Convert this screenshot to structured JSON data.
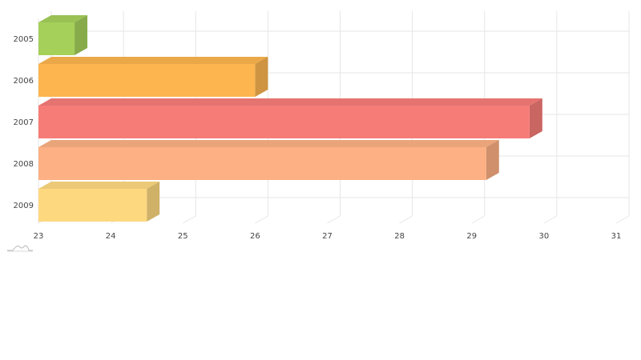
{
  "chart_data": {
    "type": "bar",
    "orientation": "horizontal",
    "style": "3d",
    "categories": [
      "2005",
      "2006",
      "2007",
      "2008",
      "2009"
    ],
    "values": [
      23.5,
      26.0,
      29.8,
      29.2,
      24.5
    ],
    "colors": [
      "#a5d05a",
      "#fcb54f",
      "#f67c77",
      "#fcb083",
      "#fdd87f"
    ],
    "xlim": [
      23,
      31
    ],
    "xticks": [
      23,
      24,
      25,
      26,
      27,
      28,
      29,
      30,
      31
    ],
    "title": "",
    "xlabel": "",
    "ylabel": "",
    "grid": true,
    "legend": "none"
  },
  "watermark_icon": "chart-logo-icon"
}
